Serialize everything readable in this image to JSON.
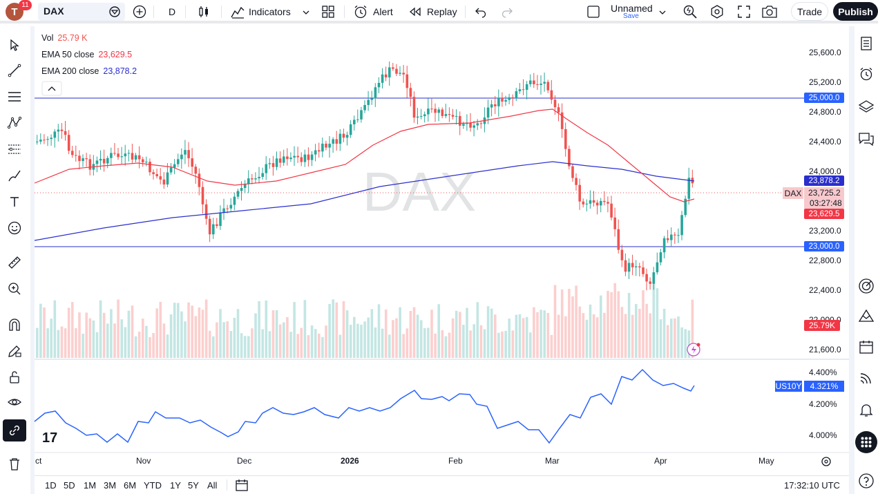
{
  "toolbar": {
    "notifications": "11",
    "avatar_letter": "T",
    "symbol": "DAX",
    "interval": "D",
    "indicators_label": "Indicators",
    "alert_label": "Alert",
    "replay_label": "Replay",
    "layout_name": "Unnamed",
    "layout_save": "Save",
    "trade_label": "Trade",
    "publish_label": "Publish"
  },
  "legend": {
    "vol_label": "Vol",
    "vol_value": "25.79 K",
    "ema50_label": "EMA 50 close",
    "ema50_value": "23,629.5",
    "ema200_label": "EMA 200 close",
    "ema200_value": "23,878.2"
  },
  "watermark": "DAX",
  "price_axis": [
    "25,600.0",
    "25,200.0",
    "24,800.0",
    "24,400.0",
    "24,000.0",
    "23,200.0",
    "22,800.0",
    "22,400.0",
    "22,000.0",
    "21,600.0"
  ],
  "badges": {
    "level_high": "25,000.0",
    "ema200": "23,878.2",
    "symbol_tag": "DAX",
    "last_price": "23,725.2",
    "countdown": "03:27:48",
    "ema50": "23,629.5",
    "level_low": "23,000.0",
    "volume": "25.79K"
  },
  "sub_pane": {
    "axis": [
      "4.400%",
      "4.200%",
      "4.000%"
    ],
    "symbol": "US10Y",
    "value": "4.321%"
  },
  "time_axis": [
    "ct",
    "Nov",
    "Dec",
    "2026",
    "Feb",
    "Mar",
    "Apr",
    "May"
  ],
  "ranges": [
    "1D",
    "5D",
    "1M",
    "3M",
    "6M",
    "YTD",
    "1Y",
    "5Y",
    "All"
  ],
  "clock": "17:32:10 UTC",
  "logo": "17",
  "colors": {
    "up": "#26a69a",
    "down": "#ef5350",
    "ema50": "#f23645",
    "ema200": "#2a2ecd",
    "hline": "#2962ff",
    "sub_line": "#2962ff"
  }
}
